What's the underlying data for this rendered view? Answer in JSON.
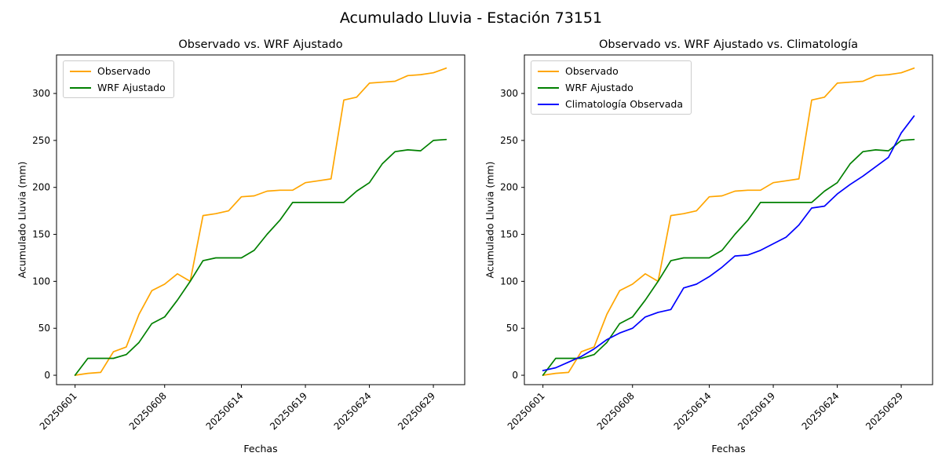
{
  "figure": {
    "suptitle": "Acumulado Lluvia - Estación 73151"
  },
  "chart_data": [
    {
      "type": "line",
      "title": "Observado vs. WRF Ajustado",
      "xlabel": "Fechas",
      "ylabel": "Acumulado Lluvia (mm)",
      "legend_position": "upper-left",
      "grid": false,
      "ylim": [
        -10,
        341
      ],
      "yticks": [
        0,
        50,
        100,
        150,
        200,
        250,
        300
      ],
      "xlim": [
        -1.45,
        30.45
      ],
      "xticks": [
        {
          "i": 0,
          "label": "20250601"
        },
        {
          "i": 7,
          "label": "20250608"
        },
        {
          "i": 13,
          "label": "20250614"
        },
        {
          "i": 18,
          "label": "20250619"
        },
        {
          "i": 23,
          "label": "20250624"
        },
        {
          "i": 28,
          "label": "20250629"
        }
      ],
      "series": [
        {
          "name": "Observado",
          "color": "#ffa500",
          "values": [
            0,
            2,
            3,
            25,
            30,
            65,
            90,
            97,
            108,
            100,
            170,
            172,
            175,
            190,
            191,
            196,
            197,
            197,
            205,
            207,
            209,
            293,
            296,
            311,
            312,
            313,
            319,
            320,
            322,
            327
          ]
        },
        {
          "name": "WRF Ajustado",
          "color": "#008000",
          "values": [
            0,
            18,
            18,
            18,
            22,
            35,
            55,
            62,
            80,
            100,
            122,
            125,
            125,
            125,
            133,
            150,
            165,
            184,
            184,
            184,
            184,
            184,
            196,
            205,
            225,
            238,
            240,
            239,
            250,
            251
          ]
        }
      ]
    },
    {
      "type": "line",
      "title": "Observado vs. WRF Ajustado vs. Climatología",
      "xlabel": "Fechas",
      "ylabel": "Acumulado Lluvia (mm)",
      "legend_position": "upper-left",
      "grid": false,
      "ylim": [
        -10,
        341
      ],
      "yticks": [
        0,
        50,
        100,
        150,
        200,
        250,
        300
      ],
      "xlim": [
        -1.45,
        30.45
      ],
      "xticks": [
        {
          "i": 0,
          "label": "20250601"
        },
        {
          "i": 7,
          "label": "20250608"
        },
        {
          "i": 13,
          "label": "20250614"
        },
        {
          "i": 18,
          "label": "20250619"
        },
        {
          "i": 23,
          "label": "20250624"
        },
        {
          "i": 28,
          "label": "20250629"
        }
      ],
      "series": [
        {
          "name": "Observado",
          "color": "#ffa500",
          "values": [
            0,
            2,
            3,
            25,
            30,
            65,
            90,
            97,
            108,
            100,
            170,
            172,
            175,
            190,
            191,
            196,
            197,
            197,
            205,
            207,
            209,
            293,
            296,
            311,
            312,
            313,
            319,
            320,
            322,
            327
          ]
        },
        {
          "name": "WRF Ajustado",
          "color": "#008000",
          "values": [
            0,
            18,
            18,
            18,
            22,
            35,
            55,
            62,
            80,
            100,
            122,
            125,
            125,
            125,
            133,
            150,
            165,
            184,
            184,
            184,
            184,
            184,
            196,
            205,
            225,
            238,
            240,
            239,
            250,
            251
          ]
        },
        {
          "name": "Climatología Observada",
          "color": "#0000ff",
          "values": [
            5,
            8,
            14,
            20,
            28,
            38,
            45,
            50,
            62,
            67,
            70,
            93,
            97,
            105,
            115,
            127,
            128,
            133,
            140,
            147,
            160,
            178,
            180,
            193,
            203,
            212,
            222,
            232,
            258,
            276
          ]
        }
      ]
    }
  ]
}
